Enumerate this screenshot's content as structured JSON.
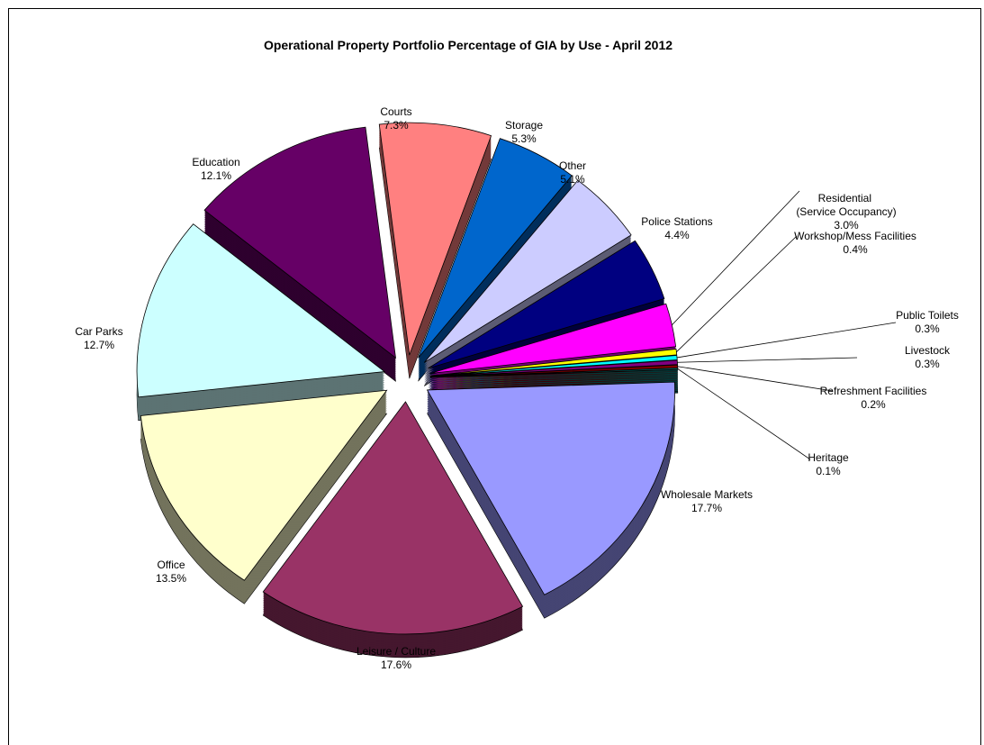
{
  "chart_data": {
    "type": "pie",
    "title": "Operational Property Portfolio Percentage of GIA by Use - April 2012",
    "categories": [
      "Courts",
      "Storage",
      "Other",
      "Police Stations",
      "Residential (Service Occupancy)",
      "Workshop/Mess Facilities",
      "Public Toilets",
      "Livestock",
      "Refreshment Facilities",
      "Heritage",
      "Wholesale Markets",
      "Leisure / Culture",
      "Office",
      "Car Parks",
      "Education"
    ],
    "values": [
      7.3,
      5.3,
      5.1,
      4.4,
      3.0,
      0.4,
      0.3,
      0.3,
      0.2,
      0.1,
      17.7,
      17.6,
      13.5,
      12.7,
      12.1
    ],
    "value_labels": [
      "7.3%",
      "5.3%",
      "5.1%",
      "4.4%",
      "3.0%",
      "0.4%",
      "0.3%",
      "0.3%",
      "0.2%",
      "0.1%",
      "17.7%",
      "17.6%",
      "13.5%",
      "12.7%",
      "12.1%"
    ],
    "colors": [
      "#ff8080",
      "#0066cc",
      "#ccccff",
      "#000080",
      "#ff00ff",
      "#ffff00",
      "#00ffff",
      "#800080",
      "#800000",
      "#008080",
      "#9999ff",
      "#993366",
      "#ffffcc",
      "#ccffff",
      "#660066"
    ]
  }
}
